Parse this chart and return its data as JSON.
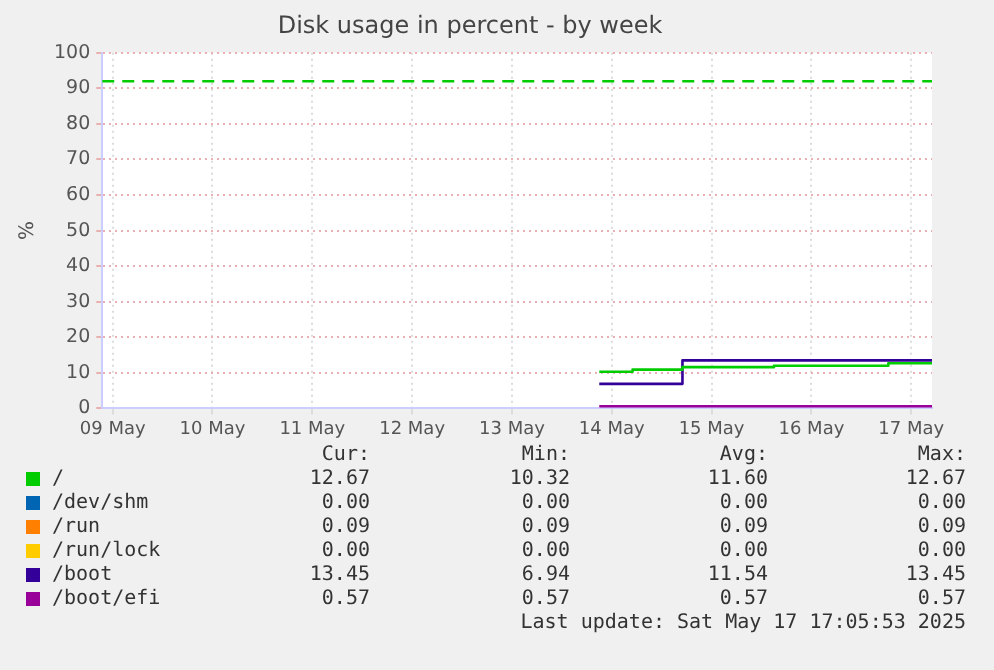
{
  "chart_data": {
    "type": "step",
    "title": "Disk usage in percent - by week",
    "ylabel": "%",
    "xlim": [
      "2025-05-09T09:30",
      "2025-05-17T17:00"
    ],
    "xticks": [
      {
        "value": "2025-05-09T12:00",
        "label": "09 May"
      },
      {
        "value": "2025-05-10T12:00",
        "label": "10 May"
      },
      {
        "value": "2025-05-11T12:00",
        "label": "11 May"
      },
      {
        "value": "2025-05-12T12:00",
        "label": "12 May"
      },
      {
        "value": "2025-05-13T12:00",
        "label": "13 May"
      },
      {
        "value": "2025-05-14T12:00",
        "label": "14 May"
      },
      {
        "value": "2025-05-15T12:00",
        "label": "15 May"
      },
      {
        "value": "2025-05-16T12:00",
        "label": "16 May"
      },
      {
        "value": "2025-05-17T12:00",
        "label": "17 May"
      }
    ],
    "ylim": [
      0,
      100
    ],
    "yticks": [
      0,
      10,
      20,
      30,
      40,
      50,
      60,
      70,
      80,
      90,
      100
    ],
    "grid": true,
    "legend": "bottom",
    "ref_lines": [
      {
        "axis": "y",
        "value": 92,
        "color": "#00cc00",
        "line_style": "dashed"
      }
    ],
    "series": [
      {
        "name": "/",
        "color": "#00cc00",
        "x": [
          "2025-05-14T09:00",
          "2025-05-14T17:00",
          "2025-05-15T05:00",
          "2025-05-16T03:00",
          "2025-05-17T06:30",
          "2025-05-17T17:00"
        ],
        "values": [
          10.3,
          10.9,
          11.6,
          12.0,
          12.7,
          12.7
        ]
      },
      {
        "name": "/dev/shm",
        "color": "#0066b3"
      },
      {
        "name": "/run",
        "color": "#ff8000"
      },
      {
        "name": "/run/lock",
        "color": "#ffcc00"
      },
      {
        "name": "/boot",
        "color": "#330099",
        "x": [
          "2025-05-14T09:00",
          "2025-05-15T05:00",
          "2025-05-17T17:00"
        ],
        "values": [
          6.9,
          13.5,
          13.5
        ]
      },
      {
        "name": "/boot/efi",
        "color": "#990099",
        "x": [
          "2025-05-14T09:00",
          "2025-05-17T17:00"
        ],
        "values": [
          0.6,
          0.6
        ]
      }
    ],
    "annotations": [
      "Cur:",
      "Min:",
      "Avg:",
      "Max:",
      "12.67",
      "10.32",
      "11.60",
      "12.67",
      "0.00",
      "0.00",
      "0.00",
      "0.00",
      "0.09",
      "0.09",
      "0.09",
      "0.09",
      "0.00",
      "0.00",
      "0.00",
      "0.00",
      "13.45",
      "6.94",
      "11.54",
      "13.45",
      "0.57",
      "0.57",
      "0.57",
      "0.57",
      "Last update: Sat May 17 17:05:53 2025"
    ]
  }
}
